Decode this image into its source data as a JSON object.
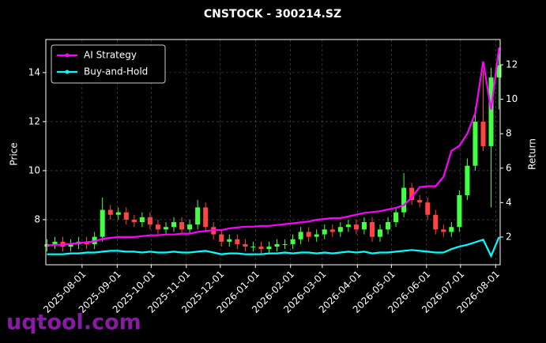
{
  "chart_data": {
    "type": "candlestick",
    "title": "CNSTOCK - 300214.SZ",
    "ylabel": "Price",
    "y2label": "Return",
    "watermark": "uqtool.com",
    "x": [
      "2025-07-01",
      "2025-07-08",
      "2025-07-15",
      "2025-07-22",
      "2025-07-29",
      "2025-08-05",
      "2025-08-12",
      "2025-08-19",
      "2025-08-26",
      "2025-09-02",
      "2025-09-09",
      "2025-09-16",
      "2025-09-23",
      "2025-09-30",
      "2025-10-07",
      "2025-10-14",
      "2025-10-21",
      "2025-10-28",
      "2025-11-04",
      "2025-11-11",
      "2025-11-18",
      "2025-11-25",
      "2025-12-02",
      "2025-12-09",
      "2025-12-16",
      "2025-12-23",
      "2025-12-30",
      "2026-01-06",
      "2026-01-13",
      "2026-01-20",
      "2026-01-27",
      "2026-02-03",
      "2026-02-10",
      "2026-02-17",
      "2026-02-24",
      "2026-03-03",
      "2026-03-10",
      "2026-03-17",
      "2026-03-24",
      "2026-03-31",
      "2026-04-07",
      "2026-04-14",
      "2026-04-21",
      "2026-04-28",
      "2026-05-05",
      "2026-05-12",
      "2026-05-19",
      "2026-05-26",
      "2026-06-02",
      "2026-06-09",
      "2026-06-16",
      "2026-06-23",
      "2026-06-30",
      "2026-07-07",
      "2026-07-14",
      "2026-07-21",
      "2026-07-28",
      "2026-08-04"
    ],
    "open": [
      6.9,
      7.0,
      7.1,
      6.9,
      7.0,
      7.1,
      7.0,
      7.3,
      8.4,
      8.2,
      8.3,
      8.0,
      7.9,
      8.1,
      7.8,
      7.6,
      7.7,
      7.9,
      7.6,
      7.8,
      8.5,
      7.7,
      7.4,
      7.1,
      7.2,
      7.0,
      6.9,
      6.9,
      6.8,
      6.9,
      7.0,
      7.0,
      7.2,
      7.5,
      7.3,
      7.4,
      7.6,
      7.5,
      7.7,
      7.8,
      7.6,
      7.9,
      7.3,
      7.6,
      7.9,
      8.3,
      9.3,
      8.8,
      8.7,
      8.2,
      7.6,
      7.5,
      7.7,
      9.0,
      10.2,
      12.0,
      11.0,
      13.8
    ],
    "high": [
      7.2,
      7.3,
      7.3,
      7.2,
      7.3,
      7.3,
      7.5,
      8.9,
      8.6,
      8.5,
      8.5,
      8.2,
      8.3,
      8.3,
      8.0,
      7.9,
      8.1,
      8.1,
      8.0,
      8.8,
      8.7,
      7.9,
      7.6,
      7.4,
      7.4,
      7.2,
      7.1,
      7.1,
      7.1,
      7.2,
      7.2,
      7.4,
      7.7,
      7.7,
      7.6,
      7.8,
      7.8,
      7.9,
      8.0,
      8.0,
      8.1,
      8.1,
      7.8,
      8.1,
      8.5,
      9.9,
      9.5,
      9.0,
      8.9,
      8.4,
      7.8,
      7.9,
      9.2,
      10.5,
      12.6,
      14.1,
      14.2,
      14.8
    ],
    "low": [
      6.7,
      6.8,
      6.7,
      6.7,
      6.8,
      6.8,
      6.8,
      7.1,
      8.0,
      8.0,
      7.8,
      7.7,
      7.7,
      7.6,
      7.4,
      7.4,
      7.5,
      7.4,
      7.4,
      7.6,
      7.5,
      7.2,
      6.9,
      6.9,
      6.8,
      6.7,
      6.7,
      6.6,
      6.6,
      6.7,
      6.8,
      6.8,
      7.0,
      7.1,
      7.1,
      7.2,
      7.3,
      7.3,
      7.5,
      7.4,
      7.4,
      7.1,
      7.1,
      7.4,
      7.7,
      8.1,
      8.6,
      8.5,
      8.0,
      7.4,
      7.3,
      7.3,
      7.5,
      8.8,
      10.0,
      10.8,
      8.5,
      12.5
    ],
    "close": [
      7.0,
      7.1,
      6.9,
      7.0,
      7.1,
      7.0,
      7.3,
      8.4,
      8.2,
      8.3,
      8.0,
      7.9,
      8.1,
      7.8,
      7.6,
      7.7,
      7.9,
      7.6,
      7.8,
      8.5,
      7.7,
      7.4,
      7.1,
      7.2,
      7.0,
      6.9,
      6.9,
      6.8,
      6.9,
      7.0,
      7.0,
      7.2,
      7.5,
      7.3,
      7.4,
      7.6,
      7.5,
      7.7,
      7.8,
      7.6,
      7.9,
      7.3,
      7.6,
      7.9,
      8.3,
      9.3,
      8.8,
      8.7,
      8.2,
      7.6,
      7.5,
      7.7,
      9.0,
      10.2,
      12.0,
      11.0,
      13.8,
      14.3
    ],
    "up_color": "#44ff44",
    "down_color": "#ff4444",
    "series": [
      {
        "name": "AI Strategy",
        "color": "#ff00ff",
        "axis": "y2",
        "values": [
          1.5,
          1.55,
          1.55,
          1.6,
          1.65,
          1.7,
          1.75,
          1.9,
          1.95,
          2.0,
          2.0,
          2.0,
          2.05,
          2.1,
          2.1,
          2.15,
          2.15,
          2.2,
          2.2,
          2.3,
          2.35,
          2.4,
          2.4,
          2.5,
          2.55,
          2.6,
          2.6,
          2.65,
          2.65,
          2.7,
          2.75,
          2.8,
          2.85,
          2.9,
          3.0,
          3.05,
          3.1,
          3.1,
          3.2,
          3.3,
          3.4,
          3.45,
          3.5,
          3.6,
          3.7,
          3.85,
          4.3,
          4.9,
          4.95,
          4.95,
          5.5,
          7.0,
          7.3,
          8.0,
          9.2,
          12.2,
          9.4,
          13.0
        ]
      },
      {
        "name": "Buy-and-Hold",
        "color": "#00ffff",
        "axis": "y2",
        "values": [
          1.0,
          1.0,
          1.0,
          1.05,
          1.05,
          1.1,
          1.1,
          1.15,
          1.2,
          1.2,
          1.15,
          1.15,
          1.1,
          1.15,
          1.1,
          1.1,
          1.15,
          1.1,
          1.1,
          1.15,
          1.2,
          1.1,
          1.0,
          1.05,
          1.05,
          1.0,
          1.0,
          1.0,
          1.05,
          1.05,
          1.1,
          1.05,
          1.1,
          1.1,
          1.05,
          1.1,
          1.05,
          1.1,
          1.15,
          1.1,
          1.15,
          1.05,
          1.1,
          1.1,
          1.15,
          1.2,
          1.25,
          1.2,
          1.15,
          1.1,
          1.1,
          1.3,
          1.45,
          1.55,
          1.7,
          1.85,
          0.9,
          2.0
        ]
      }
    ],
    "xlim": [
      "2025-06-30",
      "2026-08-05"
    ],
    "xticks": [
      "2025-08-01",
      "2025-09-01",
      "2025-10-01",
      "2025-11-01",
      "2025-12-01",
      "2026-01-01",
      "2026-02-01",
      "2026-03-01",
      "2026-04-01",
      "2026-05-01",
      "2026-06-01",
      "2026-07-01",
      "2026-08-01"
    ],
    "ylim": [
      6.16,
      15.35
    ],
    "yticks": [
      8,
      10,
      12,
      14
    ],
    "y2lim": [
      0.39,
      13.47
    ],
    "y2ticks": [
      2,
      4,
      6,
      8,
      10,
      12
    ],
    "grid": true,
    "legend": "upper left"
  }
}
